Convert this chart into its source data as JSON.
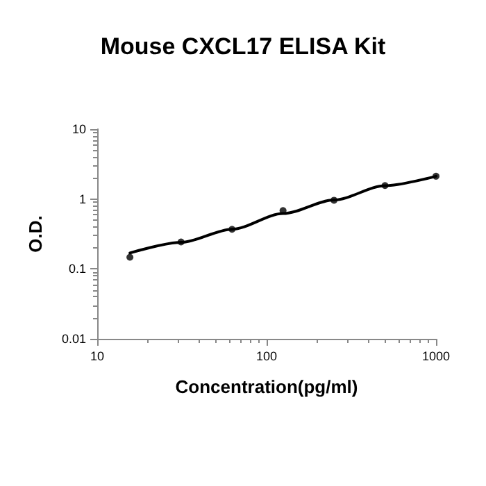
{
  "chart_data": {
    "type": "scatter",
    "title": "Mouse CXCL17 ELISA Kit",
    "xlabel": "Concentration(pg/ml)",
    "ylabel": "O.D.",
    "log": "xy",
    "grid": false,
    "marker": "circle",
    "series": [
      {
        "color": "#000000",
        "x": [
          15.6,
          31.25,
          62.5,
          125,
          250,
          500,
          1000
        ],
        "values": [
          0.147,
          0.243,
          0.369,
          0.684,
          0.96,
          1.56,
          2.12
        ]
      },
      {
        "type": "line",
        "color": "#000000",
        "marker": "none",
        "line_style": "solid",
        "x": [
          15.6,
          31.25,
          62.5,
          125,
          250,
          500,
          1000
        ],
        "values": [
          0.169,
          0.24,
          0.37,
          0.62,
          0.97,
          1.55,
          2.12
        ]
      }
    ],
    "xlim": [
      10,
      1000
    ],
    "xticks": [
      10,
      100,
      1000
    ],
    "ylim": [
      0.01,
      10
    ],
    "yticks": [
      0.01,
      0.1,
      1,
      10
    ]
  }
}
